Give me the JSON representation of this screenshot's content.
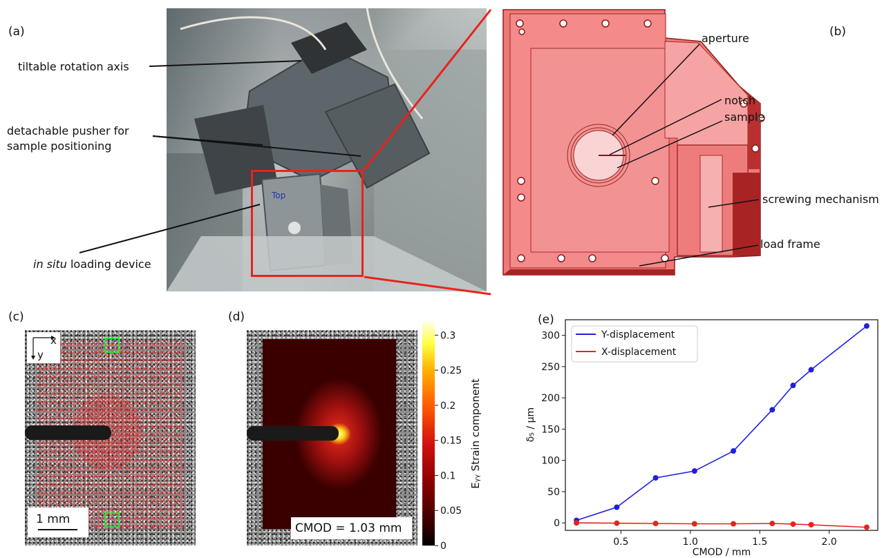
{
  "panels": {
    "a": {
      "label": "(a)"
    },
    "b": {
      "label": "(b)"
    },
    "c": {
      "label": "(c)"
    },
    "d": {
      "label": "(d)"
    },
    "e": {
      "label": "(e)"
    }
  },
  "photo_annotations": {
    "rotation_axis": "tiltable rotation axis",
    "pusher_line1": "detachable pusher for",
    "pusher_line2": "sample positioning",
    "loading_device_italic": "in situ",
    "loading_device_rest": " loading device",
    "top_marking": "Top"
  },
  "cad_annotations": {
    "aperture": "aperture",
    "notch": "notch",
    "sample": "sample",
    "screwing": "screwing mechanism",
    "load_frame": "load frame"
  },
  "panel_c": {
    "axis_x": "x",
    "axis_y": "y",
    "scale_bar": "1 mm"
  },
  "panel_d": {
    "cmod_label": "CMOD = 1.03 mm",
    "colorbar_label": "Eᵧᵧ Strain component",
    "colorbar_ticks": [
      "0",
      "0.05",
      "0.1",
      "0.15",
      "0.2",
      "0.25",
      "0.3"
    ],
    "colorbar_values": [
      0,
      0.05,
      0.1,
      0.15,
      0.2,
      0.25,
      0.3
    ],
    "colorbar_range": [
      0,
      0.32
    ]
  },
  "colors": {
    "red_highlight": "#e8231c",
    "y_series": "#1f1fe0",
    "x_series": "#e8231c",
    "mesh": "#e23030",
    "green_box": "#33dd33",
    "cad_red": "#f07878"
  },
  "chart_data": {
    "type": "line",
    "xlabel": "CMOD / mm",
    "ylabel": "δ₅ / μm",
    "xlim": [
      0.1,
      2.35
    ],
    "ylim": [
      -12,
      325
    ],
    "xticks": [
      0.5,
      1.0,
      1.5,
      2.0
    ],
    "xtick_labels": [
      "0.5",
      "1.0",
      "1.5",
      "2.0"
    ],
    "yticks": [
      0,
      50,
      100,
      150,
      200,
      250,
      300
    ],
    "ytick_labels": [
      "0",
      "50",
      "100",
      "150",
      "200",
      "250",
      "300"
    ],
    "legend_position": "top-left",
    "grid": false,
    "series": [
      {
        "name": "Y-displacement",
        "color": "#1f1fe0",
        "x": [
          0.18,
          0.47,
          0.75,
          1.03,
          1.31,
          1.59,
          1.74,
          1.87,
          2.27
        ],
        "y": [
          4,
          25,
          72,
          83,
          115,
          181,
          220,
          245,
          315
        ]
      },
      {
        "name": "X-displacement",
        "color": "#e8231c",
        "x": [
          0.18,
          0.47,
          0.75,
          1.03,
          1.31,
          1.59,
          1.74,
          1.87,
          2.27
        ],
        "y": [
          0,
          -0.5,
          -1,
          -1.5,
          -1.5,
          -1,
          -2,
          -3,
          -7
        ]
      }
    ]
  }
}
